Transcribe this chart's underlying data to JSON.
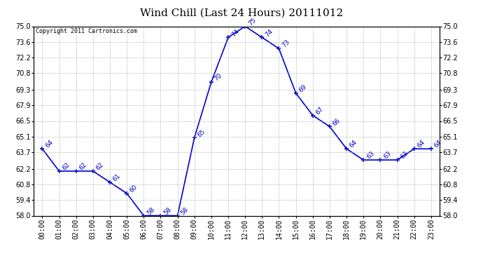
{
  "title": "Wind Chill (Last 24 Hours) 20111012",
  "copyright": "Copyright 2011 Cartronics.com",
  "hours": [
    "00:00",
    "01:00",
    "02:00",
    "03:00",
    "04:00",
    "05:00",
    "06:00",
    "07:00",
    "08:00",
    "09:00",
    "10:00",
    "11:00",
    "12:00",
    "13:00",
    "14:00",
    "15:00",
    "16:00",
    "17:00",
    "18:00",
    "19:00",
    "20:00",
    "21:00",
    "22:00",
    "23:00"
  ],
  "values": [
    64,
    62,
    62,
    62,
    61,
    60,
    58,
    58,
    58,
    65,
    70,
    74,
    75,
    74,
    73,
    69,
    67,
    66,
    64,
    63,
    63,
    63,
    64,
    64
  ],
  "ylim_min": 58.0,
  "ylim_max": 75.0,
  "yticks": [
    58.0,
    59.4,
    60.8,
    62.2,
    63.7,
    65.1,
    66.5,
    67.9,
    69.3,
    70.8,
    72.2,
    73.6,
    75.0
  ],
  "line_color": "#0000CC",
  "marker_color": "#0000CC",
  "grid_color": "#AAAAAA",
  "background_color": "#FFFFFF",
  "title_fontsize": 11,
  "copyright_fontsize": 6,
  "label_fontsize": 6.5,
  "tick_fontsize": 7
}
